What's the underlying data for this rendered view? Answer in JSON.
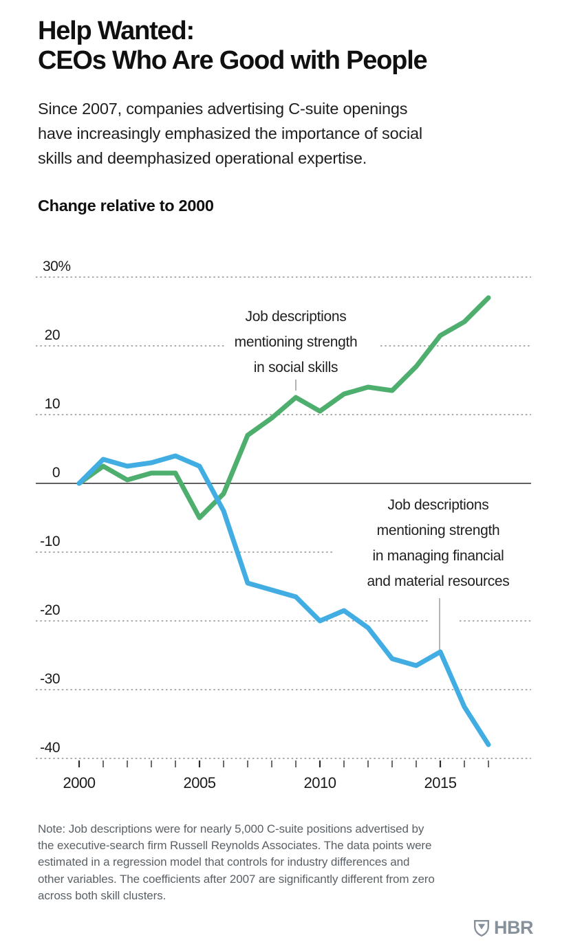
{
  "header": {
    "title_lines": [
      "Help Wanted:",
      "CEOs Who Are Good with People"
    ],
    "subtitle_lines": [
      "Since 2007, companies advertising C-suite openings",
      "have increasingly emphasized the importance of social",
      "skills and deemphasized operational expertise."
    ],
    "axis_caption": "Change relative to 2000"
  },
  "chart_data": {
    "type": "line",
    "x": [
      2000,
      2001,
      2002,
      2003,
      2004,
      2005,
      2006,
      2007,
      2008,
      2009,
      2010,
      2011,
      2012,
      2013,
      2014,
      2015,
      2016,
      2017
    ],
    "series": [
      {
        "name": "Job descriptions mentioning strength in social skills",
        "color": "#4EAE6E",
        "values": [
          0,
          2.5,
          0.5,
          1.5,
          1.5,
          -5,
          -1.5,
          7,
          9.5,
          12.5,
          10.5,
          13,
          14,
          13.5,
          17,
          21.5,
          23.5,
          27
        ]
      },
      {
        "name": "Job descriptions mentioning strength in managing financial and material resources",
        "color": "#41ADE2",
        "values": [
          0,
          3.5,
          2.5,
          3,
          4,
          2.5,
          -4,
          -14.5,
          -15.5,
          -16.5,
          -20,
          -18.5,
          -21,
          -25.5,
          -26.5,
          -24.5,
          -32.5,
          -38
        ]
      }
    ],
    "ylim": [
      -40,
      30
    ],
    "xlim": [
      2000,
      2017
    ],
    "grid": "horizontal dashed, solid line at zero",
    "legend_position": "inline annotations",
    "yticks": [
      {
        "value": 30,
        "label": "30%"
      },
      {
        "value": 20,
        "label": "20"
      },
      {
        "value": 10,
        "label": "10"
      },
      {
        "value": 0,
        "label": "0"
      },
      {
        "value": -10,
        "label": "-10"
      },
      {
        "value": -20,
        "label": "-20"
      },
      {
        "value": -30,
        "label": "-30"
      },
      {
        "value": -40,
        "label": "-40"
      }
    ],
    "xtick_labels": [
      {
        "year": 2000,
        "label": "2000"
      },
      {
        "year": 2005,
        "label": "2005"
      },
      {
        "year": 2010,
        "label": "2010"
      },
      {
        "year": 2015,
        "label": "2015"
      }
    ],
    "annotations": [
      {
        "series": "social skills",
        "lines": [
          "Job descriptions",
          "mentioning strength",
          "in social skills"
        ]
      },
      {
        "series": "financial resources",
        "lines": [
          "Job descriptions",
          "mentioning strength",
          "in managing financial",
          "and material resources"
        ]
      }
    ]
  },
  "footer": {
    "note_lines": [
      "Note: Job descriptions were for nearly 5,000 C-suite positions advertised by",
      "the executive-search firm Russell Reynolds Associates. The data points were",
      "estimated in a regression model that controls for industry differences and",
      "other variables. The coefficients after 2007 are significantly different from zero",
      "across both skill clusters."
    ],
    "logo_text": "HBR"
  },
  "colors": {
    "social_skills_line": "#4EAE6E",
    "financial_line": "#41ADE2",
    "gridline": "#8F8F8F",
    "zero_line": "#2B2B2B",
    "pointer_line": "#8A8A8A",
    "note_text": "#5A6166",
    "logo": "#87919C"
  }
}
